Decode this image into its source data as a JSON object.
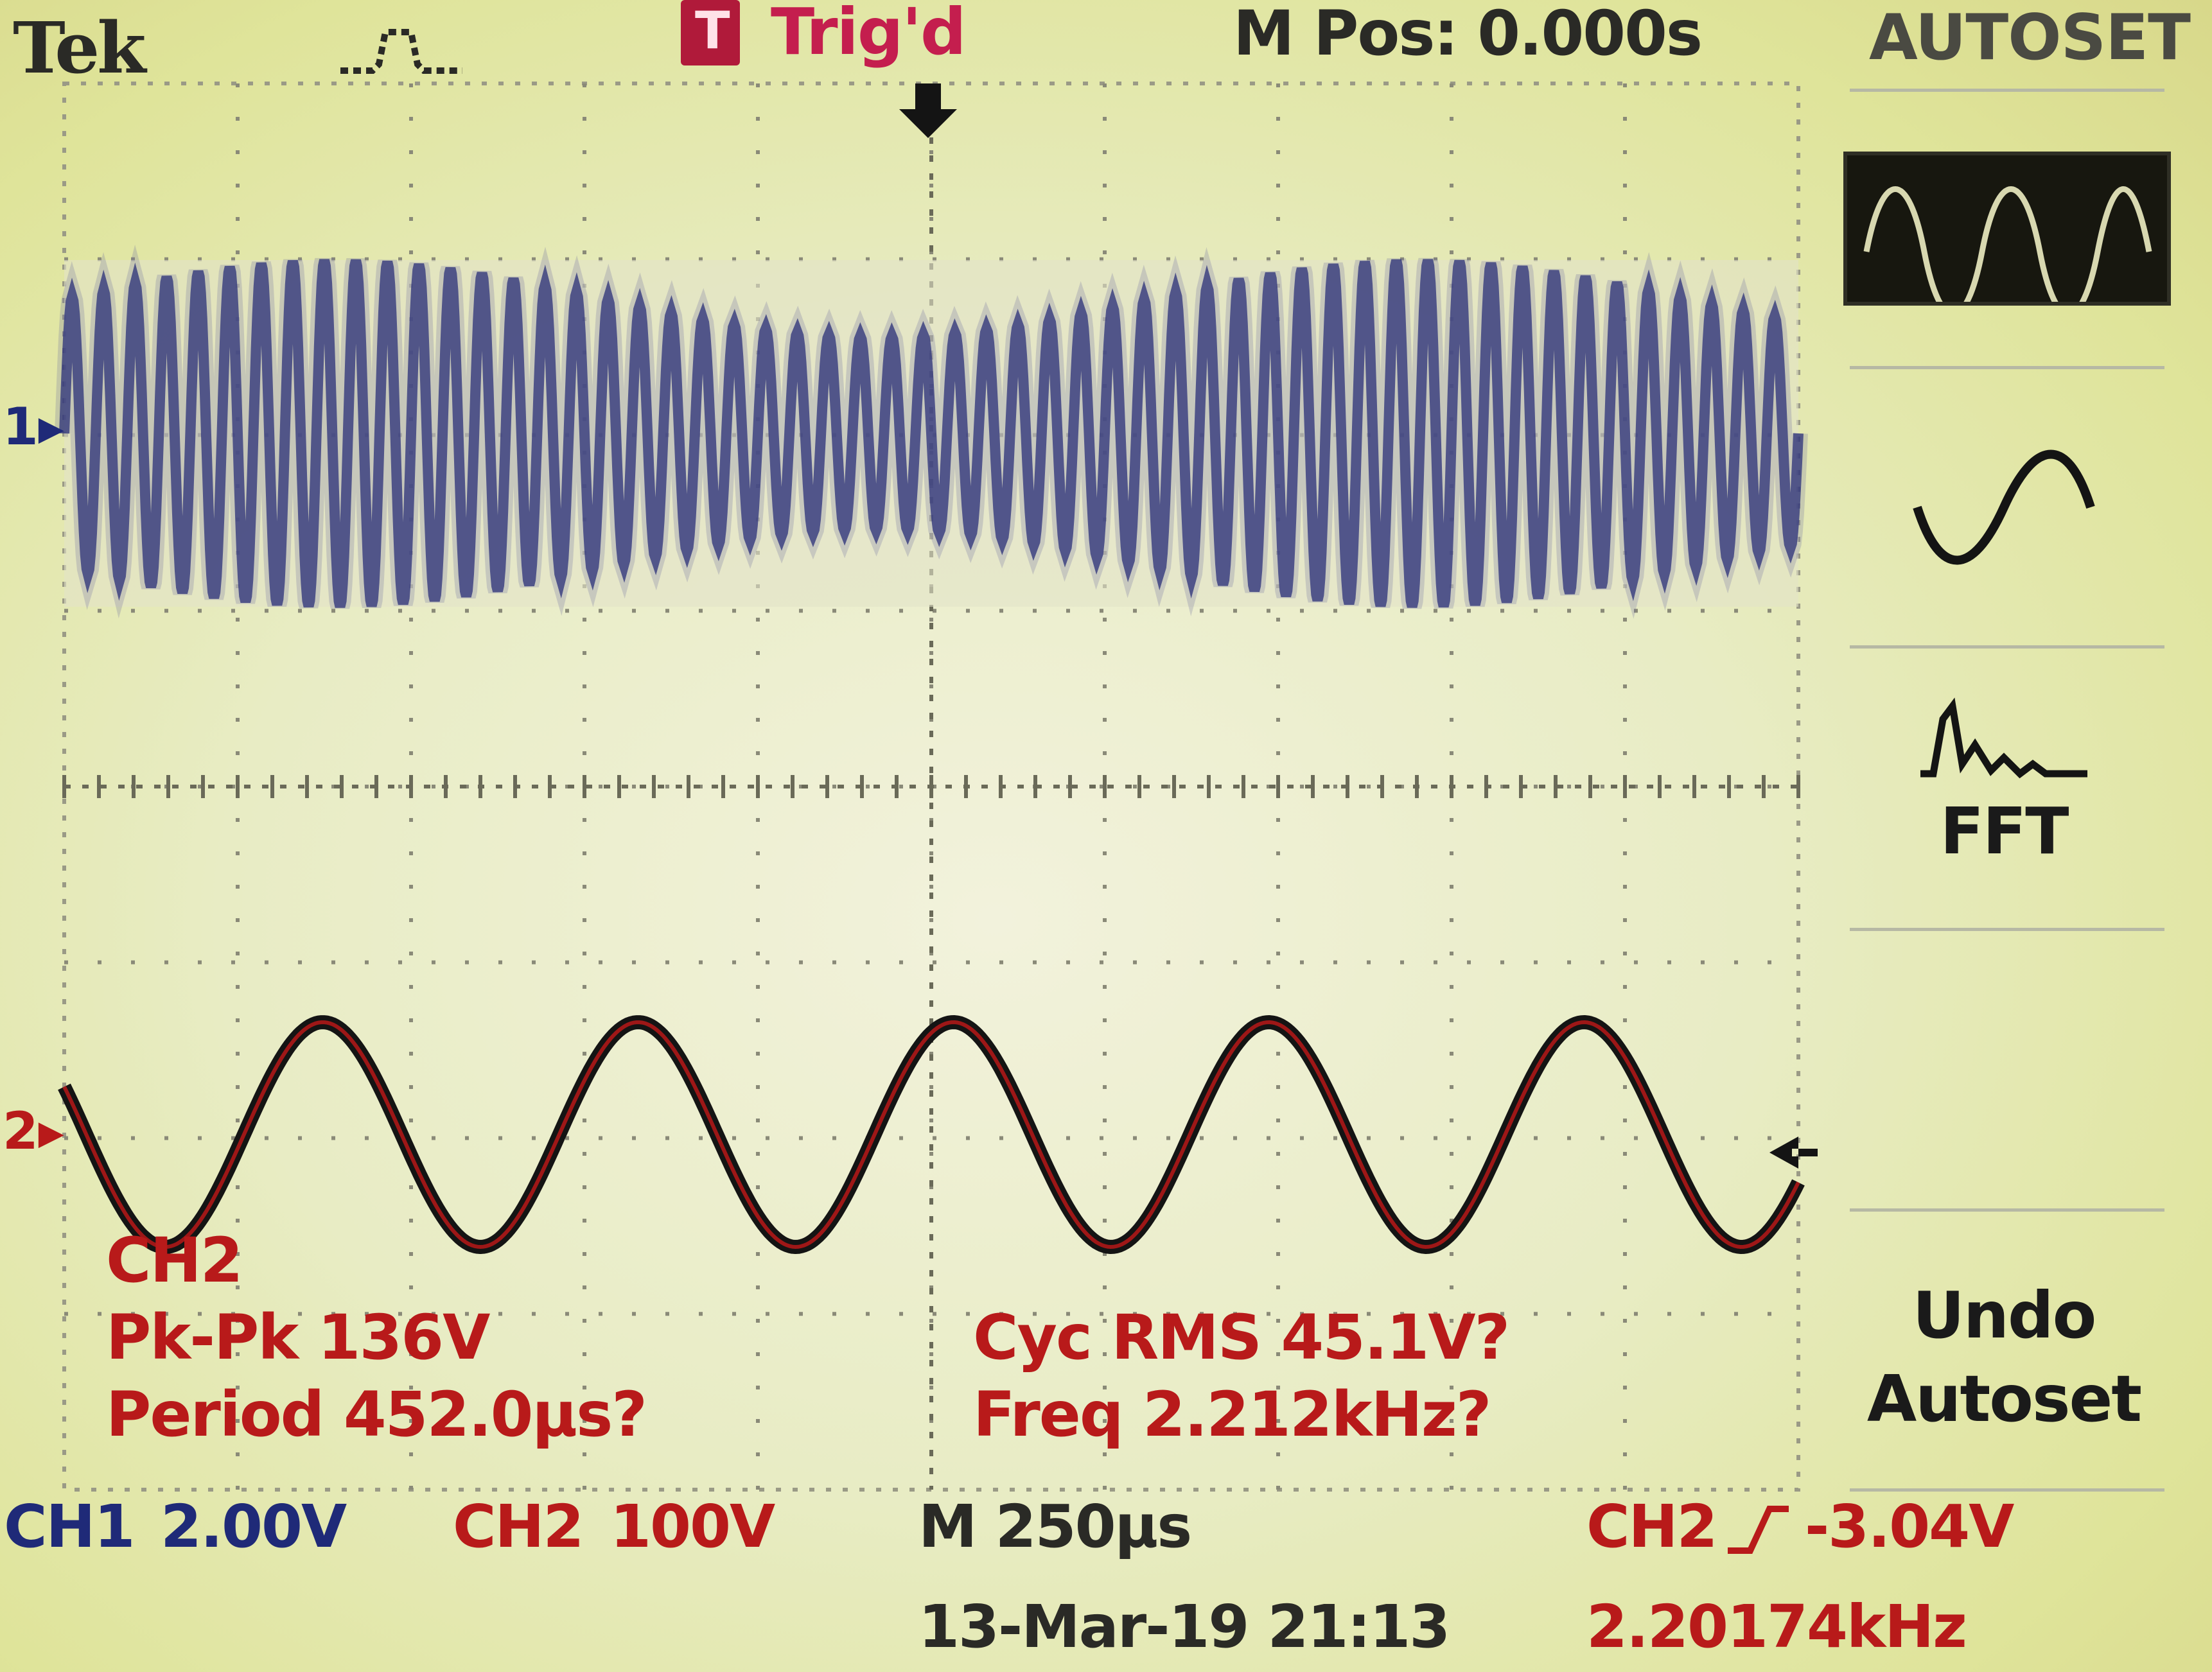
{
  "header": {
    "brand": "Tek",
    "trigger_state": "Trig'd",
    "trigger_badge": "T",
    "m_pos": "M Pos: 0.000s",
    "menu_title": "AUTOSET"
  },
  "markers": {
    "ch1": "1",
    "ch2": "2"
  },
  "measurements": {
    "source": "CH2",
    "pk_pk": "Pk-Pk 136V",
    "period": "Period 452.0μs?",
    "cyc_rms": "Cyc RMS 45.1V?",
    "freq": "Freq 2.212kHz?"
  },
  "footer": {
    "ch1_label": "CH1",
    "ch1_scale": "2.00V",
    "ch2_label": "CH2",
    "ch2_scale": "100V",
    "timebase": "M 250μs",
    "trigger_source": "CH2",
    "trigger_level": "-3.04V",
    "datetime": "13-Mar-19 21:13",
    "trigger_freq": "2.20174kHz"
  },
  "side_menu": {
    "items": [
      {
        "icon": "multi-cycle-wave-icon",
        "selected": true
      },
      {
        "icon": "single-cycle-wave-icon"
      },
      {
        "icon": "fft-spectrum-icon",
        "label": "FFT"
      },
      {
        "label_line1": "Undo",
        "label_line2": "Autoset"
      }
    ]
  },
  "chart_data": {
    "type": "line",
    "series": [
      {
        "channel": "CH1",
        "color": "#2a2f78",
        "cycles_on_screen": 55,
        "envelope": "dense"
      },
      {
        "channel": "CH2",
        "color": "#b81a1a",
        "cycles_on_screen": 5.5,
        "pk_pk_V": 136,
        "freq_kHz": 2.212
      }
    ],
    "x_divisions": 10,
    "y_divisions": 8,
    "grid": true
  }
}
